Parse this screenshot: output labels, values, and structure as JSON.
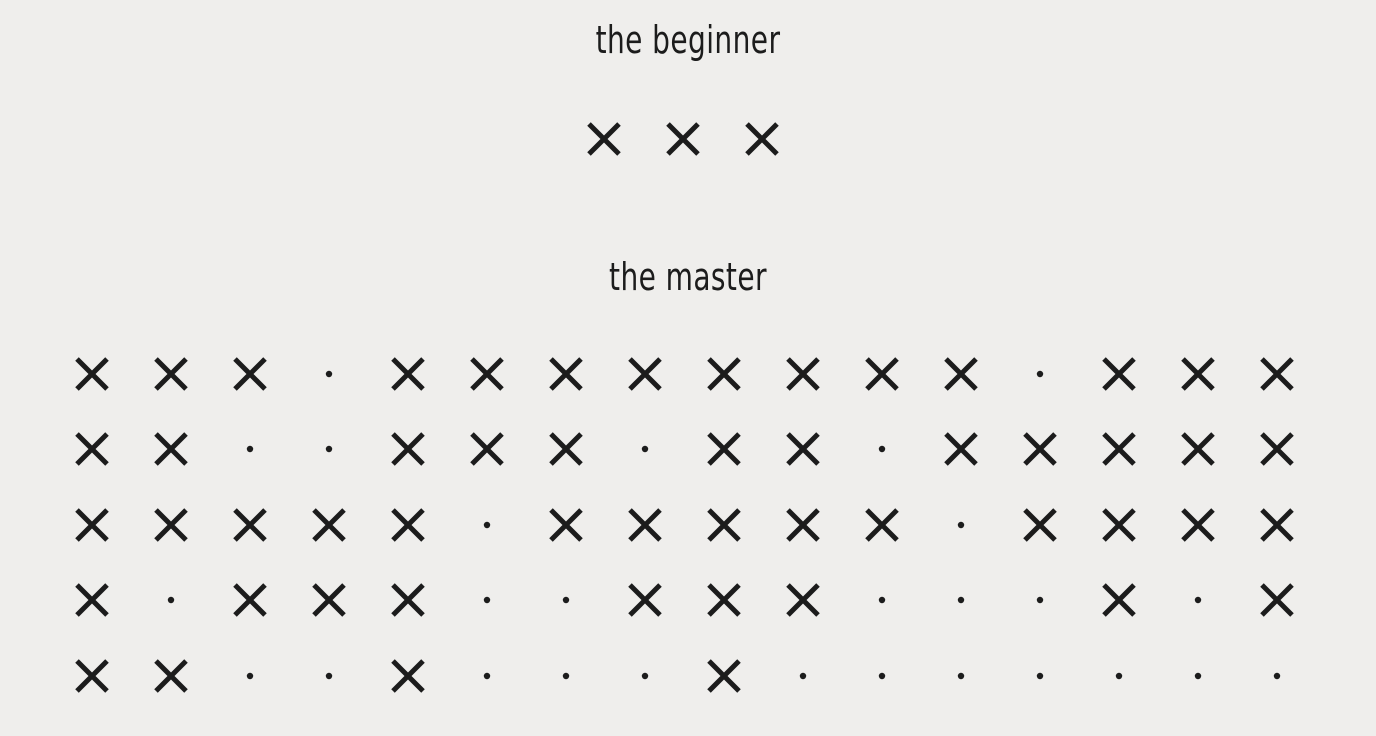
{
  "beginner": {
    "title": "the beginner",
    "marks": [
      "x",
      "x",
      "x"
    ]
  },
  "master": {
    "title": "the master",
    "rows": [
      [
        "x",
        "x",
        "x",
        ".",
        "x",
        "x",
        "x",
        "x",
        "x",
        "x",
        "x",
        "x",
        ".",
        "x",
        "x",
        "x"
      ],
      [
        "x",
        "x",
        ".",
        ".",
        "x",
        "x",
        "x",
        ".",
        "x",
        "x",
        ".",
        "x",
        "x",
        "x",
        "x",
        "x"
      ],
      [
        "x",
        "x",
        "x",
        "x",
        "x",
        ".",
        "x",
        "x",
        "x",
        "x",
        "x",
        ".",
        "x",
        "x",
        "x",
        "x"
      ],
      [
        "x",
        ".",
        "x",
        "x",
        "x",
        ".",
        ".",
        "x",
        "x",
        "x",
        ".",
        ".",
        ".",
        "x",
        ".",
        "x"
      ],
      [
        "x",
        "x",
        ".",
        ".",
        "x",
        ".",
        ".",
        ".",
        "x",
        ".",
        ".",
        ".",
        ".",
        ".",
        ".",
        "."
      ]
    ]
  },
  "legend": {
    "x": "cross-mark",
    ".": "dot-mark"
  },
  "colors": {
    "background": "#efeeec",
    "ink": "#1c1c1c"
  }
}
